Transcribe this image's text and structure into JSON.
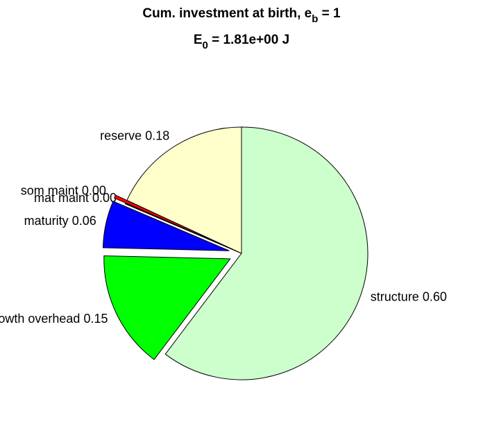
{
  "chart_data": {
    "type": "pie",
    "title": "Cum. investment at birth, e_b = 1",
    "subtitle": "E_0 = 1.81e+00 J",
    "categories": [
      "structure",
      "growth overhead",
      "maturity",
      "mat maint",
      "som maint",
      "reserve"
    ],
    "values": [
      0.6,
      0.15,
      0.06,
      0.001,
      0.004,
      0.18
    ],
    "value_labels": [
      "0.60",
      "0.15",
      "0.06",
      "0.00",
      "0.00",
      "0.18"
    ],
    "colors": [
      "#ccffcc",
      "#00ff00",
      "#0000ff",
      "#000000",
      "#ff0000",
      "#ffffcc"
    ],
    "explode": [
      false,
      true,
      true,
      false,
      true,
      false
    ]
  }
}
